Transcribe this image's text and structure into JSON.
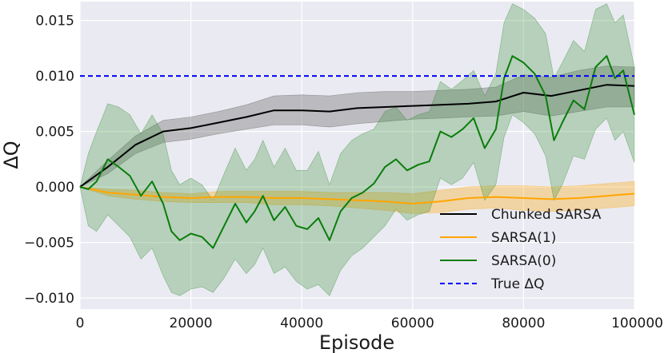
{
  "chart_data": {
    "type": "line",
    "xlabel": "Episode",
    "ylabel": "ΔQ",
    "xlim": [
      0,
      100000
    ],
    "ylim": [
      -0.011,
      0.0167
    ],
    "xticks": [
      0,
      20000,
      40000,
      60000,
      80000,
      100000
    ],
    "xtick_labels": [
      "0",
      "20000",
      "40000",
      "60000",
      "80000",
      "100000"
    ],
    "yticks": [
      -0.01,
      -0.005,
      0.0,
      0.005,
      0.01,
      0.015
    ],
    "ytick_labels": [
      "−0.010",
      "−0.005",
      "0.000",
      "0.005",
      "0.010",
      "0.015"
    ],
    "grid": true,
    "legend_position": "lower-right",
    "colors": {
      "background": "#eaeaf2",
      "grid": "#ffffff"
    },
    "series": [
      {
        "name": "Chunked SARSA",
        "color": "#000000",
        "band_color": "#555555",
        "x": [
          0,
          5000,
          10000,
          15000,
          20000,
          25000,
          30000,
          35000,
          40000,
          45000,
          50000,
          55000,
          60000,
          65000,
          70000,
          75000,
          80000,
          85000,
          90000,
          95000,
          100000
        ],
        "y": [
          0.0,
          0.0018,
          0.0038,
          0.005,
          0.0053,
          0.0058,
          0.0063,
          0.0069,
          0.0069,
          0.0068,
          0.0071,
          0.0072,
          0.0073,
          0.0074,
          0.0075,
          0.0077,
          0.0085,
          0.0082,
          0.0087,
          0.0092,
          0.0091
        ],
        "lower": [
          0.0,
          0.0012,
          0.003,
          0.004,
          0.0043,
          0.0048,
          0.0052,
          0.0056,
          0.0056,
          0.0054,
          0.0057,
          0.0059,
          0.0061,
          0.0062,
          0.0063,
          0.0064,
          0.0068,
          0.0064,
          0.0068,
          0.0072,
          0.0072
        ],
        "upper": [
          0.0,
          0.0024,
          0.0046,
          0.006,
          0.0063,
          0.0068,
          0.0074,
          0.0082,
          0.0083,
          0.0082,
          0.0085,
          0.0086,
          0.0086,
          0.0087,
          0.0088,
          0.009,
          0.0101,
          0.0099,
          0.0105,
          0.0109,
          0.0108
        ]
      },
      {
        "name": "SARSA(1)",
        "color": "#ffa500",
        "band_color": "#ffa500",
        "x": [
          0,
          5000,
          10000,
          15000,
          20000,
          25000,
          30000,
          35000,
          40000,
          45000,
          50000,
          55000,
          60000,
          65000,
          70000,
          75000,
          80000,
          85000,
          90000,
          95000,
          100000
        ],
        "y": [
          0.0,
          -0.0005,
          -0.0007,
          -0.0009,
          -0.001,
          -0.0009,
          -0.0009,
          -0.001,
          -0.001,
          -0.0011,
          -0.0012,
          -0.0013,
          -0.0015,
          -0.0013,
          -0.001,
          -0.0009,
          -0.001,
          -0.0011,
          -0.001,
          -0.0008,
          -0.0006
        ],
        "lower": [
          0.0,
          -0.0008,
          -0.0011,
          -0.0013,
          -0.0014,
          -0.0014,
          -0.0014,
          -0.0016,
          -0.0016,
          -0.0017,
          -0.0019,
          -0.0021,
          -0.0024,
          -0.0023,
          -0.002,
          -0.0019,
          -0.0021,
          -0.0022,
          -0.0021,
          -0.0019,
          -0.0017
        ],
        "upper": [
          0.0,
          -0.0002,
          -0.0003,
          -0.0005,
          -0.0006,
          -0.0004,
          -0.0004,
          -0.0004,
          -0.0004,
          -0.0005,
          -0.0005,
          -0.0005,
          -0.0006,
          -0.0003,
          0.0,
          0.0001,
          0.0001,
          0.0,
          0.0001,
          0.0003,
          0.0005
        ]
      },
      {
        "name": "SARSA(0)",
        "color": "#0a7d0a",
        "band_color": "#2e8b2e",
        "x": [
          0,
          1500,
          3000,
          5000,
          7000,
          9000,
          11000,
          13000,
          15000,
          16500,
          18000,
          20000,
          22000,
          24000,
          26000,
          28000,
          30000,
          31500,
          33000,
          35000,
          37000,
          39000,
          41000,
          43000,
          45000,
          47000,
          49000,
          51000,
          53000,
          55000,
          57000,
          59000,
          61000,
          63000,
          65000,
          67000,
          69000,
          71000,
          73000,
          75000,
          76500,
          78000,
          80000,
          82000,
          84000,
          85500,
          87000,
          89000,
          91000,
          93000,
          95000,
          96500,
          98000,
          100000
        ],
        "y": [
          0.0,
          -0.0002,
          0.0005,
          0.0025,
          0.0018,
          0.001,
          -0.0008,
          0.0005,
          -0.0015,
          -0.004,
          -0.0048,
          -0.0042,
          -0.0045,
          -0.0055,
          -0.0035,
          -0.0015,
          -0.0032,
          -0.0022,
          -0.0008,
          -0.003,
          -0.0018,
          -0.0035,
          -0.0038,
          -0.0028,
          -0.0048,
          -0.0022,
          -0.001,
          -0.0005,
          0.0003,
          0.0018,
          0.0025,
          0.0015,
          0.002,
          0.0023,
          0.005,
          0.0045,
          0.0052,
          0.0062,
          0.0035,
          0.0052,
          0.0098,
          0.0118,
          0.0112,
          0.0102,
          0.0082,
          0.0042,
          0.0058,
          0.0078,
          0.007,
          0.0108,
          0.0118,
          0.0098,
          0.0105,
          0.0065
        ],
        "lower": [
          0.0,
          -0.0035,
          -0.004,
          -0.0025,
          -0.0035,
          -0.0045,
          -0.0065,
          -0.0055,
          -0.008,
          -0.0095,
          -0.0098,
          -0.0092,
          -0.009,
          -0.0095,
          -0.0082,
          -0.0065,
          -0.0078,
          -0.007,
          -0.0055,
          -0.0078,
          -0.0072,
          -0.0085,
          -0.0092,
          -0.0088,
          -0.0098,
          -0.0075,
          -0.0062,
          -0.0055,
          -0.0045,
          -0.0035,
          -0.002,
          -0.003,
          -0.0025,
          -0.0022,
          0.0008,
          0.0002,
          0.0008,
          0.0022,
          -0.0012,
          0.0002,
          0.0045,
          0.0065,
          0.0058,
          0.0048,
          0.0028,
          -0.0012,
          0.0002,
          0.0028,
          0.0025,
          0.0052,
          0.0062,
          0.0042,
          0.005,
          0.0022
        ],
        "upper": [
          0.0,
          0.003,
          0.005,
          0.0075,
          0.0072,
          0.0065,
          0.0048,
          0.0065,
          0.0048,
          0.0015,
          0.0002,
          0.0008,
          0.0002,
          -0.0012,
          0.0012,
          0.0035,
          0.0015,
          0.0025,
          0.0042,
          0.0018,
          0.0035,
          0.0015,
          0.0015,
          0.0032,
          0.0002,
          0.003,
          0.0042,
          0.0048,
          0.0052,
          0.0068,
          0.0072,
          0.006,
          0.0065,
          0.0068,
          0.0095,
          0.0088,
          0.0096,
          0.0105,
          0.0082,
          0.0102,
          0.0148,
          0.0165,
          0.016,
          0.0152,
          0.0138,
          0.0098,
          0.0112,
          0.0132,
          0.0122,
          0.016,
          0.0165,
          0.0148,
          0.0155,
          0.0108
        ]
      }
    ],
    "reference_lines": [
      {
        "name": "True ΔQ",
        "y": 0.01,
        "color": "#0000ff",
        "style": "dashed"
      }
    ]
  }
}
